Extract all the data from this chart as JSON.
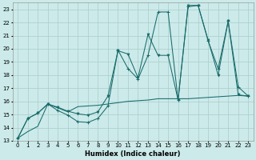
{
  "xlabel": "Humidex (Indice chaleur)",
  "bg_color": "#cceaea",
  "grid_color": "#aacccc",
  "line_color": "#1a6b6b",
  "xlim": [
    -0.5,
    23.5
  ],
  "ylim": [
    13,
    23.5
  ],
  "xtick_labels": [
    "0",
    "1",
    "2",
    "3",
    "4",
    "5",
    "6",
    "7",
    "8",
    "9",
    "10",
    "11",
    "12",
    "13",
    "14",
    "15",
    "16",
    "17",
    "18",
    "19",
    "20",
    "21",
    "22",
    "23"
  ],
  "xtick_vals": [
    0,
    1,
    2,
    3,
    4,
    5,
    6,
    7,
    8,
    9,
    10,
    11,
    12,
    13,
    14,
    15,
    16,
    17,
    18,
    19,
    20,
    21,
    22,
    23
  ],
  "ytick_vals": [
    13,
    14,
    15,
    16,
    17,
    18,
    19,
    20,
    21,
    22,
    23
  ],
  "line1_x": [
    0,
    1,
    2,
    3,
    4,
    5,
    6,
    7,
    8,
    9,
    10,
    11,
    12,
    13,
    14,
    15,
    16,
    17,
    18,
    19,
    20,
    21,
    22,
    23
  ],
  "line1_y": [
    13.2,
    14.7,
    15.1,
    15.8,
    15.3,
    14.95,
    14.45,
    14.4,
    14.7,
    15.65,
    19.9,
    18.5,
    17.7,
    19.5,
    22.8,
    22.8,
    16.1,
    23.2,
    23.3,
    20.6,
    18.5,
    22.1,
    17.1,
    16.4
  ],
  "line2_x": [
    0,
    1,
    2,
    3,
    4,
    5,
    6,
    7,
    8,
    9,
    10,
    11,
    12,
    13,
    14,
    15,
    16,
    17,
    18,
    19,
    20,
    21,
    22,
    23
  ],
  "line2_y": [
    13.2,
    14.7,
    15.1,
    15.8,
    15.55,
    15.25,
    15.05,
    14.95,
    15.2,
    16.4,
    19.85,
    19.6,
    17.8,
    21.1,
    19.5,
    19.5,
    16.1,
    23.3,
    23.3,
    20.65,
    18.0,
    22.1,
    16.5,
    16.4
  ],
  "line3_x": [
    0,
    1,
    2,
    3,
    4,
    5,
    6,
    7,
    8,
    9,
    10,
    11,
    12,
    13,
    14,
    15,
    16,
    17,
    18,
    19,
    20,
    21,
    22,
    23
  ],
  "line3_y": [
    13.2,
    13.7,
    14.1,
    15.8,
    15.5,
    15.2,
    15.6,
    15.65,
    15.7,
    15.8,
    15.9,
    16.0,
    16.05,
    16.1,
    16.2,
    16.2,
    16.2,
    16.2,
    16.25,
    16.3,
    16.35,
    16.4,
    16.45,
    16.4
  ]
}
